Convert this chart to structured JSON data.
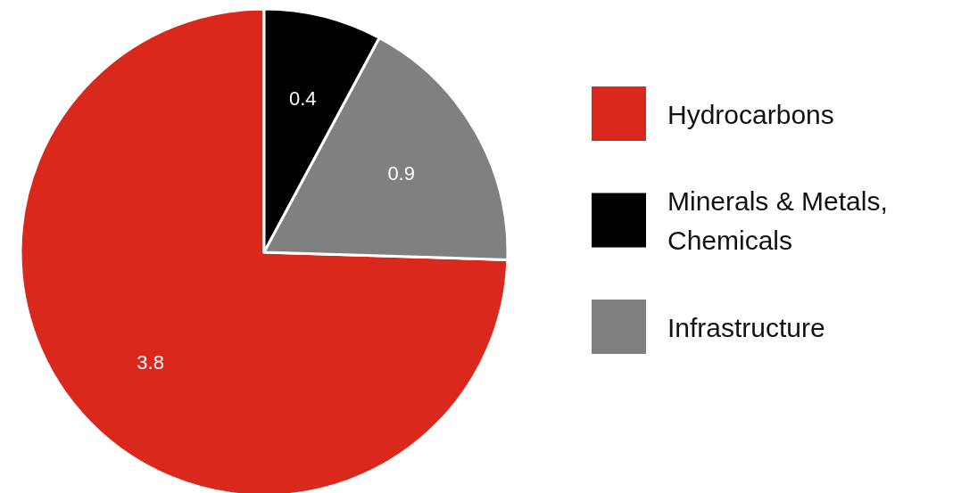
{
  "chart_data": {
    "type": "pie",
    "categories": [
      "Hydrocarbons",
      "Minerals & Metals, Chemicals",
      "Infrastructure"
    ],
    "values": [
      3.8,
      0.4,
      0.9
    ],
    "colors": [
      "#da291c",
      "#000000",
      "#808080"
    ],
    "data_labels": true,
    "legend": "right"
  }
}
